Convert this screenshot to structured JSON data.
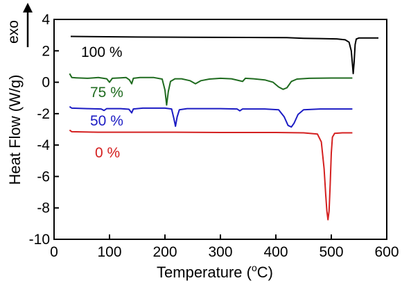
{
  "chart_data": {
    "type": "line",
    "title": "",
    "xlabel_prefix": "Temperature (",
    "xlabel_sup": "o",
    "xlabel_suffix": "C)",
    "ylabel": "Heat Flow (W/g)",
    "exo_label": "exo",
    "xlim": [
      0,
      600
    ],
    "ylim": [
      -10,
      4
    ],
    "x_ticks": [
      0,
      100,
      200,
      300,
      400,
      500,
      600
    ],
    "y_ticks": [
      4,
      2,
      0,
      -2,
      -4,
      -6,
      -8,
      -10
    ],
    "x_tick_labels": [
      "0",
      "100",
      "200",
      "300",
      "400",
      "500",
      "600"
    ],
    "y_tick_labels": [
      "4",
      "2",
      "0",
      "-2",
      "-4",
      "-6",
      "-8",
      "-10"
    ],
    "grid": false,
    "series": [
      {
        "name": "100 %",
        "color": "#000000",
        "points": [
          [
            30,
            2.92
          ],
          [
            80,
            2.9
          ],
          [
            150,
            2.88
          ],
          [
            250,
            2.86
          ],
          [
            350,
            2.85
          ],
          [
            420,
            2.84
          ],
          [
            450,
            2.8
          ],
          [
            480,
            2.78
          ],
          [
            510,
            2.76
          ],
          [
            525,
            2.7
          ],
          [
            532,
            2.55
          ],
          [
            536,
            2.0
          ],
          [
            538,
            1.2
          ],
          [
            539.5,
            0.55
          ],
          [
            541,
            1.2
          ],
          [
            543,
            2.4
          ],
          [
            545,
            2.75
          ],
          [
            550,
            2.82
          ],
          [
            570,
            2.82
          ],
          [
            585,
            2.82
          ]
        ]
      },
      {
        "name": "75 %",
        "color": "#1f6b1f",
        "points": [
          [
            28,
            0.55
          ],
          [
            32,
            0.3
          ],
          [
            40,
            0.28
          ],
          [
            60,
            0.25
          ],
          [
            80,
            0.3
          ],
          [
            95,
            0.22
          ],
          [
            100,
            0.0
          ],
          [
            105,
            0.25
          ],
          [
            120,
            0.28
          ],
          [
            130,
            0.3
          ],
          [
            136,
            0.15
          ],
          [
            140,
            -0.1
          ],
          [
            143,
            0.25
          ],
          [
            155,
            0.3
          ],
          [
            180,
            0.3
          ],
          [
            195,
            0.2
          ],
          [
            200,
            -0.5
          ],
          [
            203,
            -1.45
          ],
          [
            206,
            -0.6
          ],
          [
            210,
            0.05
          ],
          [
            218,
            0.22
          ],
          [
            230,
            0.22
          ],
          [
            245,
            0.1
          ],
          [
            255,
            -0.1
          ],
          [
            265,
            0.1
          ],
          [
            280,
            0.2
          ],
          [
            300,
            0.25
          ],
          [
            320,
            0.22
          ],
          [
            340,
            0.05
          ],
          [
            345,
            0.25
          ],
          [
            360,
            0.22
          ],
          [
            380,
            0.15
          ],
          [
            395,
            0.0
          ],
          [
            405,
            -0.3
          ],
          [
            413,
            -0.45
          ],
          [
            420,
            -0.35
          ],
          [
            428,
            0.05
          ],
          [
            438,
            0.2
          ],
          [
            460,
            0.25
          ],
          [
            500,
            0.27
          ],
          [
            538,
            0.27
          ]
        ]
      },
      {
        "name": "50 %",
        "color": "#1c1cc4",
        "points": [
          [
            28,
            -1.55
          ],
          [
            32,
            -1.65
          ],
          [
            60,
            -1.68
          ],
          [
            85,
            -1.7
          ],
          [
            90,
            -1.8
          ],
          [
            95,
            -1.68
          ],
          [
            120,
            -1.68
          ],
          [
            135,
            -1.72
          ],
          [
            140,
            -1.95
          ],
          [
            143,
            -1.7
          ],
          [
            160,
            -1.65
          ],
          [
            200,
            -1.65
          ],
          [
            212,
            -1.7
          ],
          [
            216,
            -2.3
          ],
          [
            219,
            -2.8
          ],
          [
            222,
            -2.2
          ],
          [
            226,
            -1.75
          ],
          [
            240,
            -1.68
          ],
          [
            300,
            -1.68
          ],
          [
            330,
            -1.7
          ],
          [
            335,
            -1.82
          ],
          [
            340,
            -1.7
          ],
          [
            380,
            -1.7
          ],
          [
            405,
            -1.75
          ],
          [
            415,
            -2.2
          ],
          [
            422,
            -2.75
          ],
          [
            428,
            -2.85
          ],
          [
            433,
            -2.6
          ],
          [
            440,
            -2.05
          ],
          [
            450,
            -1.75
          ],
          [
            480,
            -1.7
          ],
          [
            538,
            -1.7
          ]
        ]
      },
      {
        "name": "0 %",
        "color": "#d42020",
        "points": [
          [
            28,
            -3.05
          ],
          [
            32,
            -3.15
          ],
          [
            80,
            -3.18
          ],
          [
            200,
            -3.18
          ],
          [
            300,
            -3.2
          ],
          [
            400,
            -3.2
          ],
          [
            450,
            -3.22
          ],
          [
            475,
            -3.3
          ],
          [
            482,
            -3.8
          ],
          [
            487,
            -5.5
          ],
          [
            490,
            -7.2
          ],
          [
            492,
            -8.2
          ],
          [
            494,
            -8.75
          ],
          [
            496,
            -8.2
          ],
          [
            498,
            -6.5
          ],
          [
            500,
            -4.5
          ],
          [
            502,
            -3.5
          ],
          [
            506,
            -3.25
          ],
          [
            520,
            -3.22
          ],
          [
            538,
            -3.22
          ]
        ]
      }
    ]
  }
}
